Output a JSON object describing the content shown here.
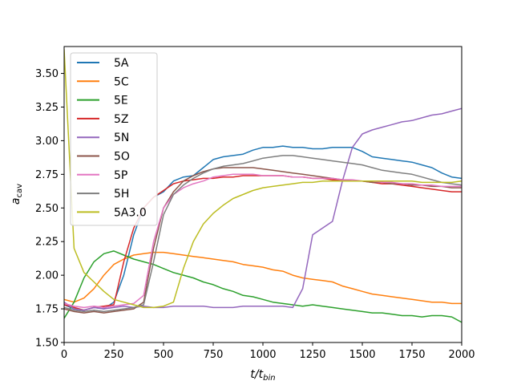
{
  "chart_data": {
    "type": "line",
    "xlabel": "t/t",
    "xlabel_sub": "bin",
    "ylabel": "a",
    "ylabel_sub": "cav",
    "xlim": [
      0,
      2000
    ],
    "ylim": [
      1.5,
      3.7
    ],
    "xticks": [
      0,
      250,
      500,
      750,
      1000,
      1250,
      1500,
      1750,
      2000
    ],
    "yticks": [
      1.5,
      1.75,
      2.0,
      2.25,
      2.5,
      2.75,
      3.0,
      3.25,
      3.5
    ],
    "xtick_labels": [
      "0",
      "250",
      "500",
      "750",
      "1000",
      "1250",
      "1500",
      "1750",
      "2000"
    ],
    "ytick_labels": [
      "1.50",
      "1.75",
      "2.00",
      "2.25",
      "2.50",
      "2.75",
      "3.00",
      "3.25",
      "3.50"
    ],
    "grid": false,
    "legend_position": "top-left",
    "series": [
      {
        "name": "5A",
        "color": "#1f77b4",
        "x": [
          0,
          50,
          100,
          150,
          200,
          250,
          300,
          350,
          400,
          450,
          500,
          550,
          600,
          650,
          700,
          750,
          800,
          850,
          900,
          950,
          1000,
          1050,
          1100,
          1150,
          1200,
          1250,
          1300,
          1350,
          1400,
          1450,
          1500,
          1550,
          1600,
          1650,
          1700,
          1750,
          1800,
          1850,
          1900,
          1950,
          2000
        ],
        "y": [
          1.78,
          1.75,
          1.74,
          1.76,
          1.75,
          1.8,
          2.0,
          2.3,
          2.5,
          2.58,
          2.62,
          2.7,
          2.73,
          2.74,
          2.8,
          2.86,
          2.88,
          2.89,
          2.9,
          2.93,
          2.95,
          2.95,
          2.96,
          2.95,
          2.95,
          2.94,
          2.94,
          2.95,
          2.95,
          2.95,
          2.92,
          2.88,
          2.87,
          2.86,
          2.85,
          2.84,
          2.82,
          2.8,
          2.76,
          2.73,
          2.72
        ]
      },
      {
        "name": "5C",
        "color": "#ff7f0e",
        "x": [
          0,
          50,
          100,
          150,
          200,
          250,
          300,
          350,
          400,
          450,
          500,
          550,
          600,
          650,
          700,
          750,
          800,
          850,
          900,
          950,
          1000,
          1050,
          1100,
          1150,
          1200,
          1250,
          1300,
          1350,
          1400,
          1450,
          1500,
          1550,
          1600,
          1650,
          1700,
          1750,
          1800,
          1850,
          1900,
          1950,
          2000
        ],
        "y": [
          1.82,
          1.8,
          1.83,
          1.9,
          2.0,
          2.08,
          2.12,
          2.15,
          2.16,
          2.17,
          2.17,
          2.16,
          2.15,
          2.14,
          2.13,
          2.12,
          2.11,
          2.1,
          2.08,
          2.07,
          2.06,
          2.04,
          2.03,
          2.0,
          1.98,
          1.97,
          1.96,
          1.95,
          1.92,
          1.9,
          1.88,
          1.86,
          1.85,
          1.84,
          1.83,
          1.82,
          1.81,
          1.8,
          1.8,
          1.79,
          1.79
        ]
      },
      {
        "name": "5E",
        "color": "#2ca02c",
        "x": [
          0,
          50,
          100,
          150,
          200,
          250,
          300,
          350,
          400,
          450,
          500,
          550,
          600,
          650,
          700,
          750,
          800,
          850,
          900,
          950,
          1000,
          1050,
          1100,
          1150,
          1200,
          1250,
          1300,
          1350,
          1400,
          1450,
          1500,
          1550,
          1600,
          1650,
          1700,
          1750,
          1800,
          1850,
          1900,
          1950,
          2000
        ],
        "y": [
          1.68,
          1.8,
          1.98,
          2.1,
          2.16,
          2.18,
          2.15,
          2.12,
          2.1,
          2.08,
          2.05,
          2.02,
          2.0,
          1.98,
          1.95,
          1.93,
          1.9,
          1.88,
          1.85,
          1.84,
          1.82,
          1.8,
          1.79,
          1.78,
          1.77,
          1.78,
          1.77,
          1.76,
          1.75,
          1.74,
          1.73,
          1.72,
          1.72,
          1.71,
          1.7,
          1.7,
          1.69,
          1.7,
          1.7,
          1.69,
          1.65
        ]
      },
      {
        "name": "5Z",
        "color": "#d62728",
        "x": [
          0,
          50,
          100,
          150,
          200,
          250,
          300,
          350,
          400,
          450,
          500,
          550,
          600,
          650,
          700,
          750,
          800,
          850,
          900,
          950,
          1000,
          1050,
          1100,
          1150,
          1200,
          1250,
          1300,
          1350,
          1400,
          1450,
          1500,
          1550,
          1600,
          1650,
          1700,
          1750,
          1800,
          1850,
          1900,
          1950,
          2000
        ],
        "y": [
          1.78,
          1.76,
          1.74,
          1.76,
          1.77,
          1.78,
          2.1,
          2.35,
          2.5,
          2.58,
          2.63,
          2.68,
          2.7,
          2.71,
          2.72,
          2.72,
          2.73,
          2.73,
          2.74,
          2.74,
          2.74,
          2.74,
          2.74,
          2.73,
          2.73,
          2.72,
          2.72,
          2.71,
          2.71,
          2.7,
          2.7,
          2.69,
          2.68,
          2.68,
          2.67,
          2.66,
          2.65,
          2.64,
          2.63,
          2.62,
          2.62
        ]
      },
      {
        "name": "5N",
        "color": "#9467bd",
        "x": [
          0,
          50,
          100,
          150,
          200,
          250,
          300,
          350,
          400,
          450,
          500,
          550,
          600,
          650,
          700,
          750,
          800,
          850,
          900,
          950,
          1000,
          1050,
          1100,
          1150,
          1200,
          1250,
          1300,
          1350,
          1400,
          1450,
          1500,
          1550,
          1600,
          1650,
          1700,
          1750,
          1800,
          1850,
          1900,
          1950,
          2000
        ],
        "y": [
          1.8,
          1.75,
          1.74,
          1.76,
          1.75,
          1.76,
          1.77,
          1.76,
          1.77,
          1.76,
          1.76,
          1.77,
          1.77,
          1.77,
          1.77,
          1.76,
          1.76,
          1.76,
          1.77,
          1.77,
          1.77,
          1.77,
          1.77,
          1.76,
          1.9,
          2.3,
          2.35,
          2.4,
          2.7,
          2.95,
          3.05,
          3.08,
          3.1,
          3.12,
          3.14,
          3.15,
          3.17,
          3.19,
          3.2,
          3.22,
          3.24
        ]
      },
      {
        "name": "5O",
        "color": "#8c564b",
        "x": [
          0,
          50,
          100,
          150,
          200,
          250,
          300,
          350,
          400,
          450,
          500,
          550,
          600,
          650,
          700,
          750,
          800,
          850,
          900,
          950,
          1000,
          1050,
          1100,
          1150,
          1200,
          1250,
          1300,
          1350,
          1400,
          1450,
          1500,
          1550,
          1600,
          1650,
          1700,
          1750,
          1800,
          1850,
          1900,
          1950,
          2000
        ],
        "y": [
          1.75,
          1.73,
          1.72,
          1.73,
          1.72,
          1.73,
          1.74,
          1.75,
          1.8,
          2.2,
          2.5,
          2.62,
          2.7,
          2.74,
          2.77,
          2.79,
          2.8,
          2.8,
          2.8,
          2.8,
          2.79,
          2.78,
          2.77,
          2.76,
          2.75,
          2.74,
          2.73,
          2.72,
          2.71,
          2.7,
          2.7,
          2.69,
          2.69,
          2.68,
          2.68,
          2.67,
          2.67,
          2.66,
          2.66,
          2.65,
          2.65
        ]
      },
      {
        "name": "5P",
        "color": "#e377c2",
        "x": [
          0,
          50,
          100,
          150,
          200,
          250,
          300,
          350,
          400,
          450,
          500,
          550,
          600,
          650,
          700,
          750,
          800,
          850,
          900,
          950,
          1000,
          1050,
          1100,
          1150,
          1200,
          1250,
          1300,
          1350,
          1400,
          1450,
          1500,
          1550,
          1600,
          1650,
          1700,
          1750,
          1800,
          1850,
          1900,
          1950,
          2000
        ],
        "y": [
          1.79,
          1.77,
          1.76,
          1.77,
          1.76,
          1.77,
          1.78,
          1.79,
          1.85,
          2.25,
          2.5,
          2.6,
          2.65,
          2.68,
          2.7,
          2.73,
          2.74,
          2.75,
          2.75,
          2.75,
          2.74,
          2.74,
          2.74,
          2.73,
          2.73,
          2.72,
          2.72,
          2.72,
          2.71,
          2.71,
          2.7,
          2.7,
          2.69,
          2.69,
          2.68,
          2.68,
          2.67,
          2.67,
          2.66,
          2.66,
          2.66
        ]
      },
      {
        "name": "5H",
        "color": "#7f7f7f",
        "x": [
          0,
          50,
          100,
          150,
          200,
          250,
          300,
          350,
          400,
          450,
          500,
          550,
          600,
          650,
          700,
          750,
          800,
          850,
          900,
          950,
          1000,
          1050,
          1100,
          1150,
          1200,
          1250,
          1300,
          1350,
          1400,
          1450,
          1500,
          1550,
          1600,
          1650,
          1700,
          1750,
          1800,
          1850,
          1900,
          1950,
          2000
        ],
        "y": [
          1.76,
          1.74,
          1.73,
          1.74,
          1.73,
          1.74,
          1.75,
          1.76,
          1.78,
          2.1,
          2.45,
          2.6,
          2.67,
          2.72,
          2.76,
          2.79,
          2.81,
          2.82,
          2.83,
          2.85,
          2.87,
          2.88,
          2.89,
          2.89,
          2.88,
          2.87,
          2.86,
          2.85,
          2.84,
          2.83,
          2.82,
          2.8,
          2.78,
          2.77,
          2.76,
          2.75,
          2.73,
          2.71,
          2.69,
          2.68,
          2.67
        ]
      },
      {
        "name": "5A3.0",
        "color": "#bcbd22",
        "x": [
          0,
          50,
          100,
          150,
          200,
          250,
          300,
          350,
          400,
          450,
          500,
          550,
          600,
          650,
          700,
          750,
          800,
          850,
          900,
          950,
          1000,
          1050,
          1100,
          1150,
          1200,
          1250,
          1300,
          1350,
          1400,
          1450,
          1500,
          1550,
          1600,
          1650,
          1700,
          1750,
          1800,
          1850,
          1900,
          1950,
          2000
        ],
        "y": [
          3.68,
          2.2,
          2.02,
          1.95,
          1.88,
          1.82,
          1.8,
          1.78,
          1.76,
          1.76,
          1.77,
          1.8,
          2.05,
          2.25,
          2.38,
          2.46,
          2.52,
          2.57,
          2.6,
          2.63,
          2.65,
          2.66,
          2.67,
          2.68,
          2.69,
          2.69,
          2.7,
          2.7,
          2.7,
          2.7,
          2.7,
          2.7,
          2.7,
          2.7,
          2.7,
          2.7,
          2.69,
          2.69,
          2.69,
          2.69,
          2.7
        ]
      }
    ]
  }
}
